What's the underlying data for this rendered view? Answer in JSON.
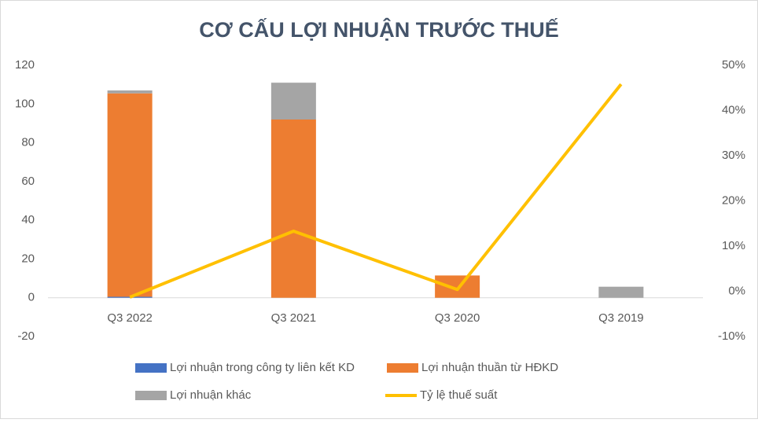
{
  "chart_data": {
    "type": "bar-line",
    "title": "CƠ CẤU LỢI NHUẬN TRƯỚC THUẾ",
    "categories": [
      "Q3 2022",
      "Q3 2021",
      "Q3 2020",
      "Q3 2019"
    ],
    "series": [
      {
        "name": "Lợi nhuận trong công ty liên kết KD",
        "color": "#4472c4",
        "type": "bar",
        "values": [
          0.5,
          0,
          0,
          0
        ]
      },
      {
        "name": "Lợi nhuận thuần từ HĐKD",
        "color": "#ed7d31",
        "type": "bar",
        "values": [
          105,
          92,
          11.5,
          0
        ]
      },
      {
        "name": "Lợi nhuận khác",
        "color": "#a5a5a5",
        "type": "bar",
        "values": [
          1.5,
          19,
          0,
          5.7
        ]
      },
      {
        "name": "Tỷ lệ thuế suất",
        "color": "#ffc000",
        "type": "line",
        "axis": "y2",
        "values": [
          -1.3,
          13.3,
          0.4,
          45.8
        ]
      }
    ],
    "ylim": [
      -20,
      120
    ],
    "yticks": [
      -20,
      0,
      20,
      40,
      60,
      80,
      100,
      120
    ],
    "y2lim": [
      -10,
      50
    ],
    "y2ticks": [
      {
        "value": -10,
        "label": "-10%"
      },
      {
        "value": 0,
        "label": "0%"
      },
      {
        "value": 10,
        "label": "10%"
      },
      {
        "value": 20,
        "label": "20%"
      },
      {
        "value": 30,
        "label": "30%"
      },
      {
        "value": 40,
        "label": "40%"
      },
      {
        "value": 50,
        "label": "50%"
      }
    ],
    "legend": "bottom"
  }
}
